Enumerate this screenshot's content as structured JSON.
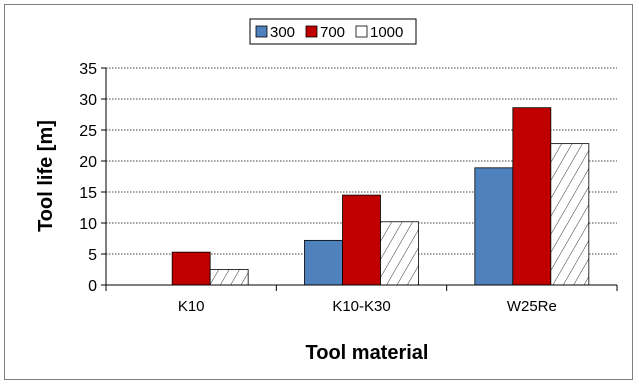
{
  "chart_data": {
    "type": "bar",
    "title": "",
    "xlabel": "Tool material",
    "ylabel": "Tool life [m]",
    "categories": [
      "K10",
      "K10-K30",
      "W25Re"
    ],
    "ylim": [
      0,
      35
    ],
    "yticks": [
      "0",
      "5",
      "10",
      "15",
      "20",
      "25",
      "30",
      "35"
    ],
    "grid": true,
    "legend_position": "top-center",
    "series": [
      {
        "name": "300",
        "values": [
          0,
          7.2,
          18.9
        ],
        "color": "#4f81bd",
        "pattern": "solid"
      },
      {
        "name": "700",
        "values": [
          5.3,
          14.5,
          28.6
        ],
        "color": "#c00000",
        "pattern": "solid"
      },
      {
        "name": "1000",
        "values": [
          2.5,
          10.2,
          22.8
        ],
        "color": "#ffffff",
        "pattern": "hatch"
      }
    ]
  }
}
